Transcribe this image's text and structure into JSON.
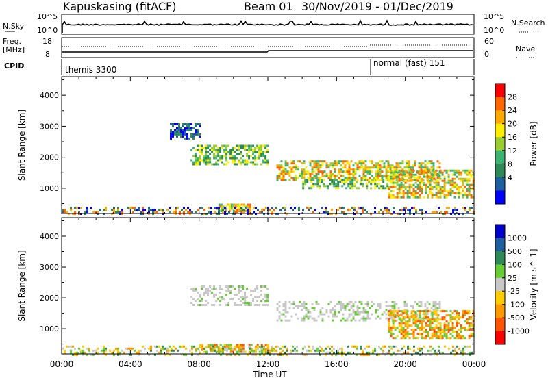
{
  "header": {
    "station": "Kapuskasing (fitACF)",
    "beam": "Beam 01",
    "date_range": "30/Nov/2019 - 01/Dec/2019"
  },
  "top_panels": {
    "nsky_label": "N.Sky",
    "nsky_ticks": [
      "10^5",
      "10^0"
    ],
    "nsky_right_ticks": [
      "10^5",
      "10^0"
    ],
    "nsearch_label": "N.Search",
    "freq_label": "Freq.",
    "freq_unit": "[MHz]",
    "freq_ticks": [
      "18",
      "8"
    ],
    "nave_ticks": [
      "60",
      "0"
    ],
    "nave_label": "Nave",
    "cpid_label": "CPID",
    "cpid_segments": [
      {
        "label": "themis 3300",
        "start_hour": 0,
        "end_hour": 18
      },
      {
        "label": "normal (fast) 151",
        "start_hour": 18,
        "end_hour": 24
      }
    ]
  },
  "chart_data": [
    {
      "type": "heatmap",
      "parameter": "Power",
      "colorbar_label": "Power [dB]",
      "colorbar_ticks": [
        "28",
        "24",
        "20",
        "16",
        "12",
        "8",
        "4"
      ],
      "colorbar_colors": [
        "#ff0000",
        "#ff6600",
        "#ffaa00",
        "#ffee00",
        "#9acd32",
        "#3cb371",
        "#2e8b57",
        "#1e5fa0",
        "#0000ff"
      ],
      "ylabel": "Slant Range [km]",
      "yticks": [
        1000,
        2000,
        3000,
        4000
      ],
      "ylim": [
        180,
        4600
      ],
      "xlim_hours": [
        0,
        24
      ],
      "echo_regions": [
        {
          "t0": 6.3,
          "t1": 8.0,
          "r0": 2600,
          "r1": 3100,
          "level": "weak"
        },
        {
          "t0": 7.5,
          "t1": 12.0,
          "r0": 1800,
          "r1": 2400,
          "level": "moderate"
        },
        {
          "t0": 12.5,
          "t1": 22.0,
          "r0": 1300,
          "r1": 1900,
          "level": "strong"
        },
        {
          "t0": 14.0,
          "t1": 19.0,
          "r0": 1000,
          "r1": 1300,
          "level": "moderate"
        },
        {
          "t0": 19.0,
          "t1": 24.0,
          "r0": 700,
          "r1": 1600,
          "level": "strong"
        },
        {
          "t0": 9.0,
          "t1": 11.0,
          "r0": 250,
          "r1": 500,
          "level": "strong"
        },
        {
          "t0": 0.0,
          "t1": 24.0,
          "r0": 180,
          "r1": 400,
          "level": "ground"
        }
      ]
    },
    {
      "type": "heatmap",
      "parameter": "Velocity",
      "colorbar_label": "Velocity [m s^-1]",
      "colorbar_ticks": [
        "1000",
        "500",
        "100",
        "25",
        "-25",
        "-100",
        "-500",
        "-1000"
      ],
      "colorbar_colors": [
        "#0000cd",
        "#1e5fa0",
        "#2e8b57",
        "#66cc33",
        "#c8c8c8",
        "#ffcc00",
        "#ff9900",
        "#ff5500",
        "#ff0000"
      ],
      "ylabel": "Slant Range [km]",
      "yticks": [
        1000,
        2000,
        3000,
        4000
      ],
      "ylim": [
        180,
        4600
      ],
      "xlim_hours": [
        0,
        24
      ],
      "xlabel": "Time UT",
      "xtick_labels": [
        "00:00",
        "04:00",
        "08:00",
        "12:00",
        "16:00",
        "20:00",
        "00:00"
      ],
      "echo_regions": [
        {
          "t0": 7.5,
          "t1": 12.0,
          "r0": 1800,
          "r1": 2400,
          "level": "ground"
        },
        {
          "t0": 12.5,
          "t1": 22.0,
          "r0": 1300,
          "r1": 1900,
          "level": "ground"
        },
        {
          "t0": 19.0,
          "t1": 24.0,
          "r0": 700,
          "r1": 1600,
          "level": "negative"
        },
        {
          "t0": 8.0,
          "t1": 12.0,
          "r0": 250,
          "r1": 500,
          "level": "negative"
        },
        {
          "t0": 0.0,
          "t1": 24.0,
          "r0": 180,
          "r1": 450,
          "level": "mixed"
        }
      ]
    }
  ]
}
